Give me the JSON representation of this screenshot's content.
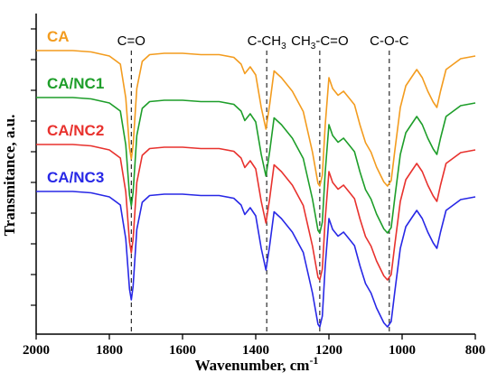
{
  "chart_data": {
    "type": "line",
    "xlabel": "Wavenumber, cm",
    "xlabel_superscript": "-1",
    "ylabel": "Transmitance, a.u.",
    "xlim": [
      2000,
      800
    ],
    "x_reversed": true,
    "x_ticks": [
      2000,
      1800,
      1600,
      1400,
      1200,
      1000,
      800
    ],
    "y_tick_labels": false,
    "grid": false,
    "annotations": [
      {
        "x": 1740,
        "label": "C=O"
      },
      {
        "x": 1370,
        "label": "C-CH",
        "sub": "3"
      },
      {
        "x": 1225,
        "label": "CH",
        "sub": "3",
        "label_rest": "-C=O"
      },
      {
        "x": 1035,
        "label": "C-O-C"
      }
    ],
    "series": [
      {
        "name": "CA",
        "color": "#F39C1F",
        "offset": 3,
        "points": [
          [
            2000,
            0.0
          ],
          [
            1900,
            0.0
          ],
          [
            1850,
            0.01
          ],
          [
            1800,
            0.04
          ],
          [
            1770,
            0.1
          ],
          [
            1755,
            0.35
          ],
          [
            1745,
            0.72
          ],
          [
            1740,
            0.8
          ],
          [
            1735,
            0.7
          ],
          [
            1725,
            0.28
          ],
          [
            1710,
            0.08
          ],
          [
            1690,
            0.03
          ],
          [
            1650,
            0.02
          ],
          [
            1600,
            0.02
          ],
          [
            1550,
            0.03
          ],
          [
            1500,
            0.03
          ],
          [
            1460,
            0.05
          ],
          [
            1440,
            0.1
          ],
          [
            1430,
            0.17
          ],
          [
            1415,
            0.12
          ],
          [
            1400,
            0.18
          ],
          [
            1385,
            0.42
          ],
          [
            1372,
            0.58
          ],
          [
            1362,
            0.4
          ],
          [
            1350,
            0.15
          ],
          [
            1330,
            0.2
          ],
          [
            1300,
            0.3
          ],
          [
            1270,
            0.45
          ],
          [
            1245,
            0.75
          ],
          [
            1230,
            0.98
          ],
          [
            1225,
            1.0
          ],
          [
            1218,
            0.92
          ],
          [
            1210,
            0.55
          ],
          [
            1200,
            0.2
          ],
          [
            1190,
            0.28
          ],
          [
            1175,
            0.33
          ],
          [
            1160,
            0.3
          ],
          [
            1145,
            0.35
          ],
          [
            1130,
            0.4
          ],
          [
            1115,
            0.55
          ],
          [
            1100,
            0.68
          ],
          [
            1085,
            0.75
          ],
          [
            1070,
            0.86
          ],
          [
            1050,
            0.97
          ],
          [
            1040,
            1.0
          ],
          [
            1030,
            0.96
          ],
          [
            1020,
            0.74
          ],
          [
            1005,
            0.42
          ],
          [
            990,
            0.26
          ],
          [
            975,
            0.2
          ],
          [
            960,
            0.14
          ],
          [
            945,
            0.2
          ],
          [
            930,
            0.3
          ],
          [
            915,
            0.38
          ],
          [
            905,
            0.42
          ],
          [
            895,
            0.3
          ],
          [
            880,
            0.14
          ],
          [
            860,
            0.1
          ],
          [
            840,
            0.06
          ],
          [
            820,
            0.05
          ],
          [
            800,
            0.04
          ]
        ]
      },
      {
        "name": "CA/NC1",
        "color": "#1E9E2A",
        "offset": 2,
        "points": [
          [
            2000,
            0.0
          ],
          [
            1900,
            0.0
          ],
          [
            1850,
            0.01
          ],
          [
            1800,
            0.04
          ],
          [
            1770,
            0.1
          ],
          [
            1755,
            0.35
          ],
          [
            1745,
            0.72
          ],
          [
            1740,
            0.8
          ],
          [
            1735,
            0.7
          ],
          [
            1725,
            0.28
          ],
          [
            1710,
            0.08
          ],
          [
            1690,
            0.03
          ],
          [
            1650,
            0.02
          ],
          [
            1600,
            0.02
          ],
          [
            1550,
            0.03
          ],
          [
            1500,
            0.03
          ],
          [
            1460,
            0.05
          ],
          [
            1440,
            0.1
          ],
          [
            1430,
            0.17
          ],
          [
            1415,
            0.12
          ],
          [
            1400,
            0.18
          ],
          [
            1385,
            0.42
          ],
          [
            1372,
            0.58
          ],
          [
            1362,
            0.4
          ],
          [
            1350,
            0.15
          ],
          [
            1330,
            0.2
          ],
          [
            1300,
            0.3
          ],
          [
            1270,
            0.45
          ],
          [
            1245,
            0.75
          ],
          [
            1230,
            0.98
          ],
          [
            1225,
            1.0
          ],
          [
            1218,
            0.92
          ],
          [
            1210,
            0.55
          ],
          [
            1200,
            0.2
          ],
          [
            1190,
            0.28
          ],
          [
            1175,
            0.33
          ],
          [
            1160,
            0.3
          ],
          [
            1145,
            0.35
          ],
          [
            1130,
            0.4
          ],
          [
            1115,
            0.55
          ],
          [
            1100,
            0.68
          ],
          [
            1085,
            0.75
          ],
          [
            1070,
            0.86
          ],
          [
            1050,
            0.97
          ],
          [
            1040,
            1.0
          ],
          [
            1030,
            0.96
          ],
          [
            1020,
            0.74
          ],
          [
            1005,
            0.42
          ],
          [
            990,
            0.26
          ],
          [
            975,
            0.2
          ],
          [
            960,
            0.14
          ],
          [
            945,
            0.2
          ],
          [
            930,
            0.3
          ],
          [
            915,
            0.38
          ],
          [
            905,
            0.42
          ],
          [
            895,
            0.3
          ],
          [
            880,
            0.14
          ],
          [
            860,
            0.1
          ],
          [
            840,
            0.06
          ],
          [
            820,
            0.05
          ],
          [
            800,
            0.04
          ]
        ]
      },
      {
        "name": "CA/NC2",
        "color": "#E8322E",
        "offset": 1,
        "points": [
          [
            2000,
            0.0
          ],
          [
            1900,
            0.0
          ],
          [
            1850,
            0.01
          ],
          [
            1800,
            0.04
          ],
          [
            1770,
            0.1
          ],
          [
            1755,
            0.35
          ],
          [
            1745,
            0.72
          ],
          [
            1740,
            0.8
          ],
          [
            1735,
            0.7
          ],
          [
            1725,
            0.28
          ],
          [
            1710,
            0.08
          ],
          [
            1690,
            0.03
          ],
          [
            1650,
            0.02
          ],
          [
            1600,
            0.02
          ],
          [
            1550,
            0.03
          ],
          [
            1500,
            0.03
          ],
          [
            1460,
            0.05
          ],
          [
            1440,
            0.1
          ],
          [
            1430,
            0.17
          ],
          [
            1415,
            0.12
          ],
          [
            1400,
            0.18
          ],
          [
            1385,
            0.42
          ],
          [
            1372,
            0.58
          ],
          [
            1362,
            0.4
          ],
          [
            1350,
            0.15
          ],
          [
            1330,
            0.2
          ],
          [
            1300,
            0.3
          ],
          [
            1270,
            0.45
          ],
          [
            1245,
            0.75
          ],
          [
            1230,
            0.98
          ],
          [
            1225,
            1.0
          ],
          [
            1218,
            0.92
          ],
          [
            1210,
            0.55
          ],
          [
            1200,
            0.2
          ],
          [
            1190,
            0.28
          ],
          [
            1175,
            0.33
          ],
          [
            1160,
            0.3
          ],
          [
            1145,
            0.35
          ],
          [
            1130,
            0.4
          ],
          [
            1115,
            0.55
          ],
          [
            1100,
            0.68
          ],
          [
            1085,
            0.75
          ],
          [
            1070,
            0.86
          ],
          [
            1050,
            0.97
          ],
          [
            1040,
            1.0
          ],
          [
            1030,
            0.96
          ],
          [
            1020,
            0.74
          ],
          [
            1005,
            0.42
          ],
          [
            990,
            0.26
          ],
          [
            975,
            0.2
          ],
          [
            960,
            0.14
          ],
          [
            945,
            0.2
          ],
          [
            930,
            0.3
          ],
          [
            915,
            0.38
          ],
          [
            905,
            0.42
          ],
          [
            895,
            0.3
          ],
          [
            880,
            0.14
          ],
          [
            860,
            0.1
          ],
          [
            840,
            0.06
          ],
          [
            820,
            0.05
          ],
          [
            800,
            0.04
          ]
        ]
      },
      {
        "name": "CA/NC3",
        "color": "#2828E6",
        "offset": 0,
        "points": [
          [
            2000,
            0.0
          ],
          [
            1900,
            0.0
          ],
          [
            1850,
            0.01
          ],
          [
            1800,
            0.04
          ],
          [
            1770,
            0.1
          ],
          [
            1755,
            0.35
          ],
          [
            1745,
            0.72
          ],
          [
            1740,
            0.8
          ],
          [
            1735,
            0.7
          ],
          [
            1725,
            0.28
          ],
          [
            1710,
            0.08
          ],
          [
            1690,
            0.03
          ],
          [
            1650,
            0.02
          ],
          [
            1600,
            0.02
          ],
          [
            1550,
            0.03
          ],
          [
            1500,
            0.03
          ],
          [
            1460,
            0.05
          ],
          [
            1440,
            0.1
          ],
          [
            1430,
            0.17
          ],
          [
            1415,
            0.12
          ],
          [
            1400,
            0.18
          ],
          [
            1385,
            0.42
          ],
          [
            1372,
            0.58
          ],
          [
            1362,
            0.4
          ],
          [
            1350,
            0.15
          ],
          [
            1330,
            0.2
          ],
          [
            1300,
            0.3
          ],
          [
            1270,
            0.45
          ],
          [
            1245,
            0.75
          ],
          [
            1230,
            0.98
          ],
          [
            1225,
            1.0
          ],
          [
            1218,
            0.92
          ],
          [
            1210,
            0.55
          ],
          [
            1200,
            0.2
          ],
          [
            1190,
            0.28
          ],
          [
            1175,
            0.33
          ],
          [
            1160,
            0.3
          ],
          [
            1145,
            0.35
          ],
          [
            1130,
            0.4
          ],
          [
            1115,
            0.55
          ],
          [
            1100,
            0.68
          ],
          [
            1085,
            0.75
          ],
          [
            1070,
            0.86
          ],
          [
            1050,
            0.97
          ],
          [
            1040,
            1.0
          ],
          [
            1030,
            0.96
          ],
          [
            1020,
            0.74
          ],
          [
            1005,
            0.42
          ],
          [
            990,
            0.26
          ],
          [
            975,
            0.2
          ],
          [
            960,
            0.14
          ],
          [
            945,
            0.2
          ],
          [
            930,
            0.3
          ],
          [
            915,
            0.38
          ],
          [
            905,
            0.42
          ],
          [
            895,
            0.3
          ],
          [
            880,
            0.14
          ],
          [
            860,
            0.1
          ],
          [
            840,
            0.06
          ],
          [
            820,
            0.05
          ],
          [
            800,
            0.04
          ]
        ]
      }
    ]
  }
}
